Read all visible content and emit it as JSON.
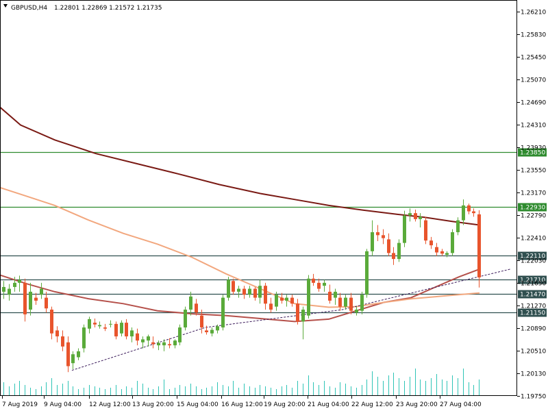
{
  "header": {
    "symbol": "GBPUSD,H4",
    "ohlc": "1.22801 1.22869 1.21572 1.21735"
  },
  "colors": {
    "bull": "#5aaa3a",
    "bear": "#e8542c",
    "ma_long": "#7a1a14",
    "ma_mid": "#b5504a",
    "ma_short": "#f2a77e",
    "level_green": "#2e8b2e",
    "level_dark": "#2f4f4f",
    "volume": "#2ec4b6",
    "trend": "#3a1a5a",
    "grid": "#000000"
  },
  "chart_data": {
    "type": "candlestick",
    "ylim": [
      1.1975,
      1.264
    ],
    "y_ticks": [
      "1.26210",
      "1.25830",
      "1.25450",
      "1.25070",
      "1.24690",
      "1.24310",
      "1.23930",
      "1.23550",
      "1.23170",
      "1.22790",
      "1.22410",
      "1.22030",
      "1.21650",
      "1.21270",
      "1.20890",
      "1.20510",
      "1.20130",
      "1.19750"
    ],
    "x_labels": [
      "7 Aug 2019",
      "9 Aug 04:00",
      "12 Aug 12:00",
      "13 Aug 20:00",
      "15 Aug 04:00",
      "16 Aug 12:00",
      "19 Aug 20:00",
      "21 Aug 04:00",
      "22 Aug 12:00",
      "23 Aug 20:00",
      "27 Aug 04:00"
    ],
    "levels": [
      {
        "value": 1.2385,
        "label": "1.23850",
        "color": "level_green"
      },
      {
        "value": 1.2293,
        "label": "1.22930",
        "color": "level_green"
      },
      {
        "value": 1.2211,
        "label": "1.22110",
        "color": "level_dark"
      },
      {
        "value": 1.2171,
        "label": "1.21710",
        "color": "level_dark"
      },
      {
        "value": 1.2147,
        "label": "1.21470",
        "color": "level_dark"
      },
      {
        "value": 1.2115,
        "label": "1.21150",
        "color": "level_dark"
      }
    ],
    "candles": [
      {
        "o": 1.215,
        "h": 1.2168,
        "l": 1.2138,
        "c": 1.2158
      },
      {
        "o": 1.2145,
        "h": 1.2163,
        "l": 1.2135,
        "c": 1.2155
      },
      {
        "o": 1.2158,
        "h": 1.2175,
        "l": 1.215,
        "c": 1.2165
      },
      {
        "o": 1.2165,
        "h": 1.2177,
        "l": 1.215,
        "c": 1.217
      },
      {
        "o": 1.2165,
        "h": 1.2172,
        "l": 1.21,
        "c": 1.2112
      },
      {
        "o": 1.212,
        "h": 1.2165,
        "l": 1.211,
        "c": 1.215
      },
      {
        "o": 1.214,
        "h": 1.2148,
        "l": 1.2128,
        "c": 1.2135
      },
      {
        "o": 1.2145,
        "h": 1.2165,
        "l": 1.2138,
        "c": 1.2155
      },
      {
        "o": 1.214,
        "h": 1.215,
        "l": 1.2115,
        "c": 1.2122
      },
      {
        "o": 1.212,
        "h": 1.2125,
        "l": 1.207,
        "c": 1.208
      },
      {
        "o": 1.2085,
        "h": 1.2092,
        "l": 1.2065,
        "c": 1.2075
      },
      {
        "o": 1.2075,
        "h": 1.2085,
        "l": 1.205,
        "c": 1.2058
      },
      {
        "o": 1.2065,
        "h": 1.2075,
        "l": 1.2015,
        "c": 1.2025
      },
      {
        "o": 1.203,
        "h": 1.205,
        "l": 1.202,
        "c": 1.2045
      },
      {
        "o": 1.204,
        "h": 1.2055,
        "l": 1.2035,
        "c": 1.205
      },
      {
        "o": 1.2055,
        "h": 1.2095,
        "l": 1.2048,
        "c": 1.209
      },
      {
        "o": 1.2088,
        "h": 1.2108,
        "l": 1.208,
        "c": 1.2104
      },
      {
        "o": 1.2098,
        "h": 1.2105,
        "l": 1.209,
        "c": 1.2095
      },
      {
        "o": 1.2092,
        "h": 1.21,
        "l": 1.2088,
        "c": 1.2094
      },
      {
        "o": 1.209,
        "h": 1.2096,
        "l": 1.2084,
        "c": 1.2088
      },
      {
        "o": 1.2095,
        "h": 1.2102,
        "l": 1.209,
        "c": 1.2096
      },
      {
        "o": 1.2096,
        "h": 1.21,
        "l": 1.207,
        "c": 1.2075
      },
      {
        "o": 1.208,
        "h": 1.2102,
        "l": 1.2075,
        "c": 1.2098
      },
      {
        "o": 1.2098,
        "h": 1.2104,
        "l": 1.207,
        "c": 1.2075
      },
      {
        "o": 1.2075,
        "h": 1.209,
        "l": 1.2065,
        "c": 1.2085
      },
      {
        "o": 1.208,
        "h": 1.2088,
        "l": 1.206,
        "c": 1.2068
      },
      {
        "o": 1.2065,
        "h": 1.2075,
        "l": 1.2055,
        "c": 1.207
      },
      {
        "o": 1.2068,
        "h": 1.2078,
        "l": 1.2058,
        "c": 1.2075
      },
      {
        "o": 1.2065,
        "h": 1.2075,
        "l": 1.2055,
        "c": 1.2062
      },
      {
        "o": 1.206,
        "h": 1.2068,
        "l": 1.2052,
        "c": 1.2064
      },
      {
        "o": 1.206,
        "h": 1.207,
        "l": 1.205,
        "c": 1.2065
      },
      {
        "o": 1.2062,
        "h": 1.2072,
        "l": 1.2055,
        "c": 1.206
      },
      {
        "o": 1.206,
        "h": 1.207,
        "l": 1.2055,
        "c": 1.2068
      },
      {
        "o": 1.2065,
        "h": 1.2095,
        "l": 1.206,
        "c": 1.209
      },
      {
        "o": 1.209,
        "h": 1.2125,
        "l": 1.2085,
        "c": 1.212
      },
      {
        "o": 1.212,
        "h": 1.215,
        "l": 1.211,
        "c": 1.2142
      },
      {
        "o": 1.213,
        "h": 1.2138,
        "l": 1.211,
        "c": 1.2115
      },
      {
        "o": 1.211,
        "h": 1.212,
        "l": 1.208,
        "c": 1.209
      },
      {
        "o": 1.2085,
        "h": 1.2093,
        "l": 1.2078,
        "c": 1.2082
      },
      {
        "o": 1.208,
        "h": 1.209,
        "l": 1.2075,
        "c": 1.2086
      },
      {
        "o": 1.2085,
        "h": 1.2095,
        "l": 1.208,
        "c": 1.2092
      },
      {
        "o": 1.209,
        "h": 1.2145,
        "l": 1.2085,
        "c": 1.214
      },
      {
        "o": 1.214,
        "h": 1.2175,
        "l": 1.2135,
        "c": 1.217
      },
      {
        "o": 1.2168,
        "h": 1.2172,
        "l": 1.2145,
        "c": 1.215
      },
      {
        "o": 1.215,
        "h": 1.216,
        "l": 1.214,
        "c": 1.2155
      },
      {
        "o": 1.2155,
        "h": 1.216,
        "l": 1.2138,
        "c": 1.2145
      },
      {
        "o": 1.2145,
        "h": 1.216,
        "l": 1.214,
        "c": 1.2155
      },
      {
        "o": 1.2155,
        "h": 1.2158,
        "l": 1.2135,
        "c": 1.214
      },
      {
        "o": 1.214,
        "h": 1.217,
        "l": 1.213,
        "c": 1.216
      },
      {
        "o": 1.216,
        "h": 1.2165,
        "l": 1.212,
        "c": 1.213
      },
      {
        "o": 1.213,
        "h": 1.214,
        "l": 1.2115,
        "c": 1.212
      },
      {
        "o": 1.2125,
        "h": 1.215,
        "l": 1.2118,
        "c": 1.2145
      },
      {
        "o": 1.214,
        "h": 1.2148,
        "l": 1.213,
        "c": 1.2135
      },
      {
        "o": 1.2135,
        "h": 1.2145,
        "l": 1.2125,
        "c": 1.214
      },
      {
        "o": 1.214,
        "h": 1.2145,
        "l": 1.2125,
        "c": 1.213
      },
      {
        "o": 1.213,
        "h": 1.2138,
        "l": 1.2095,
        "c": 1.21
      },
      {
        "o": 1.21,
        "h": 1.2125,
        "l": 1.207,
        "c": 1.212
      },
      {
        "o": 1.211,
        "h": 1.2178,
        "l": 1.2105,
        "c": 1.2172
      },
      {
        "o": 1.2172,
        "h": 1.218,
        "l": 1.216,
        "c": 1.2165
      },
      {
        "o": 1.2165,
        "h": 1.2172,
        "l": 1.215,
        "c": 1.2155
      },
      {
        "o": 1.216,
        "h": 1.217,
        "l": 1.215,
        "c": 1.2165
      },
      {
        "o": 1.215,
        "h": 1.2162,
        "l": 1.213,
        "c": 1.2135
      },
      {
        "o": 1.214,
        "h": 1.2155,
        "l": 1.2128,
        "c": 1.215
      },
      {
        "o": 1.214,
        "h": 1.2148,
        "l": 1.2118,
        "c": 1.2125
      },
      {
        "o": 1.2125,
        "h": 1.2145,
        "l": 1.212,
        "c": 1.214
      },
      {
        "o": 1.214,
        "h": 1.2148,
        "l": 1.2112,
        "c": 1.2118
      },
      {
        "o": 1.2115,
        "h": 1.2125,
        "l": 1.211,
        "c": 1.212
      },
      {
        "o": 1.2118,
        "h": 1.215,
        "l": 1.2112,
        "c": 1.2145
      },
      {
        "o": 1.2145,
        "h": 1.2222,
        "l": 1.214,
        "c": 1.2218
      },
      {
        "o": 1.2218,
        "h": 1.227,
        "l": 1.221,
        "c": 1.225
      },
      {
        "o": 1.225,
        "h": 1.2262,
        "l": 1.2235,
        "c": 1.2245
      },
      {
        "o": 1.2245,
        "h": 1.2255,
        "l": 1.223,
        "c": 1.224
      },
      {
        "o": 1.2238,
        "h": 1.2248,
        "l": 1.221,
        "c": 1.2215
      },
      {
        "o": 1.2215,
        "h": 1.2225,
        "l": 1.2195,
        "c": 1.2205
      },
      {
        "o": 1.2205,
        "h": 1.2238,
        "l": 1.22,
        "c": 1.2232
      },
      {
        "o": 1.2232,
        "h": 1.2286,
        "l": 1.2225,
        "c": 1.2278
      },
      {
        "o": 1.2278,
        "h": 1.229,
        "l": 1.2268,
        "c": 1.2282
      },
      {
        "o": 1.2282,
        "h": 1.2288,
        "l": 1.2268,
        "c": 1.2272
      },
      {
        "o": 1.2272,
        "h": 1.2282,
        "l": 1.2258,
        "c": 1.2276
      },
      {
        "o": 1.227,
        "h": 1.2276,
        "l": 1.223,
        "c": 1.2236
      },
      {
        "o": 1.2236,
        "h": 1.2242,
        "l": 1.2222,
        "c": 1.2228
      },
      {
        "o": 1.2225,
        "h": 1.2232,
        "l": 1.221,
        "c": 1.2216
      },
      {
        "o": 1.2218,
        "h": 1.2222,
        "l": 1.221,
        "c": 1.2214
      },
      {
        "o": 1.2212,
        "h": 1.2218,
        "l": 1.2208,
        "c": 1.2215
      },
      {
        "o": 1.2215,
        "h": 1.2255,
        "l": 1.221,
        "c": 1.225
      },
      {
        "o": 1.225,
        "h": 1.2275,
        "l": 1.2245,
        "c": 1.227
      },
      {
        "o": 1.227,
        "h": 1.2305,
        "l": 1.2262,
        "c": 1.2295
      },
      {
        "o": 1.2295,
        "h": 1.2298,
        "l": 1.228,
        "c": 1.2285
      },
      {
        "o": 1.2285,
        "h": 1.229,
        "l": 1.2276,
        "c": 1.2282
      },
      {
        "o": 1.228,
        "h": 1.2287,
        "l": 1.2157,
        "c": 1.2174
      }
    ],
    "volume": [
      20,
      14,
      18,
      22,
      16,
      12,
      10,
      14,
      20,
      26,
      16,
      18,
      22,
      14,
      10,
      12,
      16,
      14,
      12,
      10,
      12,
      16,
      10,
      14,
      12,
      22,
      18,
      12,
      10,
      14,
      24,
      10,
      12,
      16,
      14,
      18,
      14,
      10,
      12,
      14,
      20,
      16,
      14,
      22,
      12,
      18,
      14,
      12,
      16,
      14,
      12,
      10,
      14,
      16,
      12,
      22,
      18,
      30,
      20,
      16,
      22,
      14,
      12,
      20,
      18,
      14,
      12,
      16,
      24,
      36,
      28,
      22,
      30,
      34,
      26,
      22,
      28,
      40,
      24,
      22,
      26,
      32,
      24,
      22,
      30,
      26,
      40,
      20,
      16,
      24
    ],
    "ma_long": [
      [
        0,
        1.246
      ],
      [
        30,
        1.243
      ],
      [
        80,
        1.2405
      ],
      [
        140,
        1.2382
      ],
      [
        200,
        1.2365
      ],
      [
        260,
        1.2348
      ],
      [
        320,
        1.233
      ],
      [
        380,
        1.2315
      ],
      [
        430,
        1.2305
      ],
      [
        480,
        1.2295
      ],
      [
        530,
        1.2287
      ],
      [
        580,
        1.228
      ],
      [
        620,
        1.2275
      ],
      [
        660,
        1.2268
      ],
      [
        700,
        1.2262
      ]
    ],
    "ma_mid": [
      [
        0,
        1.2178
      ],
      [
        40,
        1.2163
      ],
      [
        80,
        1.215
      ],
      [
        130,
        1.2138
      ],
      [
        180,
        1.213
      ],
      [
        230,
        1.2118
      ],
      [
        280,
        1.2113
      ],
      [
        330,
        1.211
      ],
      [
        380,
        1.2105
      ],
      [
        430,
        1.21
      ],
      [
        480,
        1.2104
      ],
      [
        520,
        1.2118
      ],
      [
        560,
        1.2132
      ],
      [
        600,
        1.214
      ],
      [
        640,
        1.216
      ],
      [
        670,
        1.2175
      ],
      [
        700,
        1.2188
      ]
    ],
    "ma_short": [
      [
        0,
        1.2325
      ],
      [
        40,
        1.231
      ],
      [
        80,
        1.2295
      ],
      [
        130,
        1.227
      ],
      [
        180,
        1.2248
      ],
      [
        230,
        1.223
      ],
      [
        280,
        1.2208
      ],
      [
        330,
        1.218
      ],
      [
        380,
        1.2155
      ],
      [
        430,
        1.213
      ],
      [
        480,
        1.2124
      ],
      [
        520,
        1.2125
      ],
      [
        560,
        1.2132
      ],
      [
        600,
        1.2138
      ],
      [
        640,
        1.2142
      ],
      [
        700,
        1.2148
      ]
    ],
    "trendline": [
      [
        105,
        1.2018
      ],
      [
        300,
        1.209
      ],
      [
        500,
        1.212
      ],
      [
        745,
        1.2188
      ]
    ]
  }
}
